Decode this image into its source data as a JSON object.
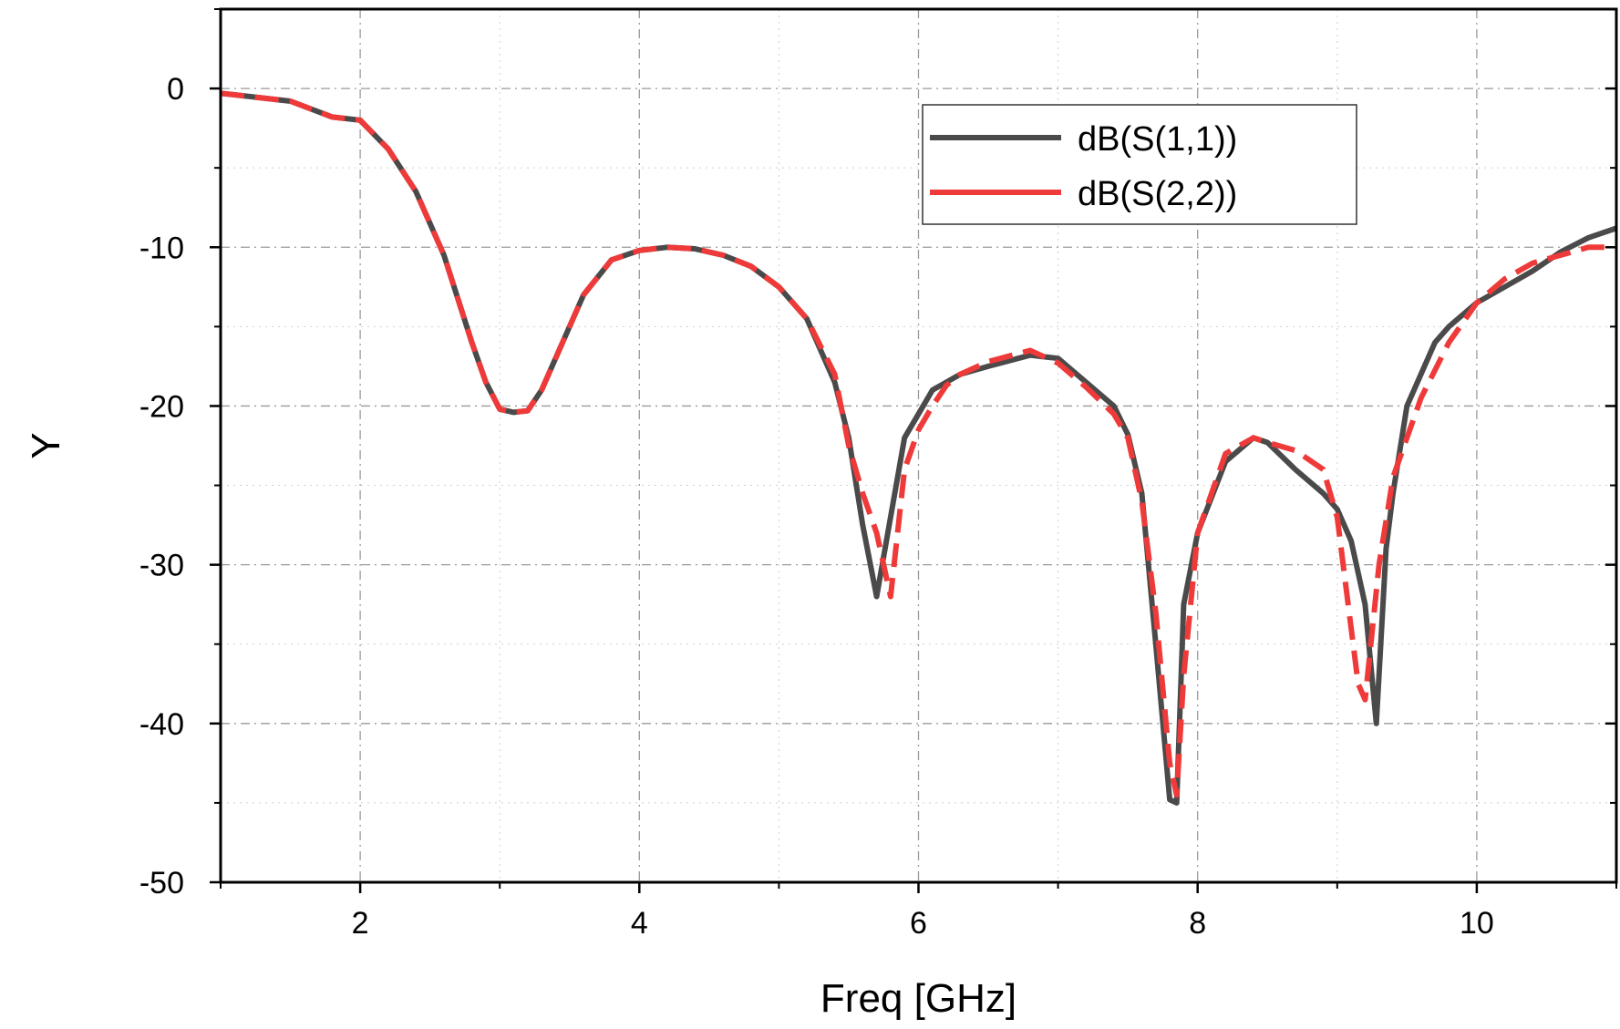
{
  "chart_data": {
    "type": "line",
    "title": "",
    "xlabel": "Freq [GHz]",
    "ylabel": "Y",
    "xlim": [
      1,
      11
    ],
    "ylim": [
      -50,
      5
    ],
    "xticks": [
      2,
      4,
      6,
      8,
      10
    ],
    "yticks": [
      0,
      -10,
      -20,
      -30,
      -40,
      -50
    ],
    "grid": true,
    "legend_position": "top-right",
    "series": [
      {
        "name": "dB(S(1,1))",
        "color": "#4a4a4a",
        "style": "solid",
        "x": [
          1.0,
          1.5,
          1.8,
          2.0,
          2.2,
          2.4,
          2.6,
          2.8,
          2.9,
          3.0,
          3.1,
          3.2,
          3.3,
          3.4,
          3.6,
          3.8,
          4.0,
          4.2,
          4.4,
          4.6,
          4.8,
          5.0,
          5.2,
          5.4,
          5.5,
          5.6,
          5.7,
          5.8,
          5.9,
          6.0,
          6.1,
          6.2,
          6.3,
          6.5,
          6.8,
          7.0,
          7.2,
          7.4,
          7.5,
          7.6,
          7.7,
          7.8,
          7.85,
          7.9,
          8.0,
          8.2,
          8.4,
          8.5,
          8.7,
          8.9,
          9.0,
          9.1,
          9.2,
          9.28,
          9.35,
          9.4,
          9.5,
          9.7,
          9.8,
          10.0,
          10.2,
          10.4,
          10.6,
          10.8,
          11.0
        ],
        "y": [
          -0.3,
          -0.8,
          -1.8,
          -2.0,
          -3.8,
          -6.5,
          -10.5,
          -16.0,
          -18.5,
          -20.2,
          -20.4,
          -20.3,
          -19.0,
          -17.0,
          -13.0,
          -10.8,
          -10.2,
          -10.0,
          -10.1,
          -10.5,
          -11.2,
          -12.5,
          -14.5,
          -18.5,
          -22.0,
          -27.5,
          -32.0,
          -27.0,
          -22.0,
          -20.5,
          -19.0,
          -18.5,
          -18.0,
          -17.5,
          -16.8,
          -17.0,
          -18.5,
          -20.0,
          -21.8,
          -25.5,
          -35.0,
          -44.8,
          -45.0,
          -32.5,
          -28.0,
          -23.5,
          -22.0,
          -22.3,
          -24.0,
          -25.5,
          -26.5,
          -28.5,
          -32.5,
          -40.0,
          -29.0,
          -25.5,
          -20.0,
          -16.0,
          -15.0,
          -13.5,
          -12.5,
          -11.5,
          -10.3,
          -9.4,
          -8.8
        ]
      },
      {
        "name": "dB(S(2,2))",
        "color": "#ef3a3a",
        "style": "dashed",
        "x": [
          1.0,
          1.5,
          1.8,
          2.0,
          2.2,
          2.4,
          2.6,
          2.8,
          2.9,
          3.0,
          3.1,
          3.2,
          3.3,
          3.4,
          3.6,
          3.8,
          4.0,
          4.2,
          4.4,
          4.6,
          4.8,
          5.0,
          5.2,
          5.4,
          5.5,
          5.6,
          5.7,
          5.8,
          5.9,
          6.0,
          6.1,
          6.2,
          6.3,
          6.5,
          6.8,
          7.0,
          7.2,
          7.4,
          7.5,
          7.6,
          7.7,
          7.8,
          7.85,
          7.9,
          8.0,
          8.2,
          8.4,
          8.5,
          8.7,
          8.9,
          9.0,
          9.1,
          9.15,
          9.2,
          9.3,
          9.4,
          9.6,
          9.8,
          10.0,
          10.2,
          10.4,
          10.6,
          10.8,
          11.0
        ],
        "y": [
          -0.3,
          -0.8,
          -1.8,
          -2.0,
          -3.8,
          -6.5,
          -10.5,
          -16.0,
          -18.5,
          -20.2,
          -20.4,
          -20.3,
          -19.0,
          -17.0,
          -13.0,
          -10.8,
          -10.2,
          -10.0,
          -10.1,
          -10.5,
          -11.2,
          -12.5,
          -14.5,
          -18.0,
          -22.5,
          -25.5,
          -28.0,
          -32.0,
          -24.0,
          -21.5,
          -20.0,
          -18.7,
          -18.0,
          -17.2,
          -16.5,
          -17.3,
          -18.8,
          -20.5,
          -22.0,
          -26.0,
          -33.0,
          -42.5,
          -44.5,
          -37.0,
          -28.0,
          -23.0,
          -22.0,
          -22.3,
          -22.8,
          -24.0,
          -27.0,
          -34.0,
          -37.5,
          -38.5,
          -30.0,
          -24.5,
          -19.5,
          -16.0,
          -13.5,
          -12.0,
          -11.0,
          -10.5,
          -10.0,
          -10.0
        ]
      }
    ]
  }
}
